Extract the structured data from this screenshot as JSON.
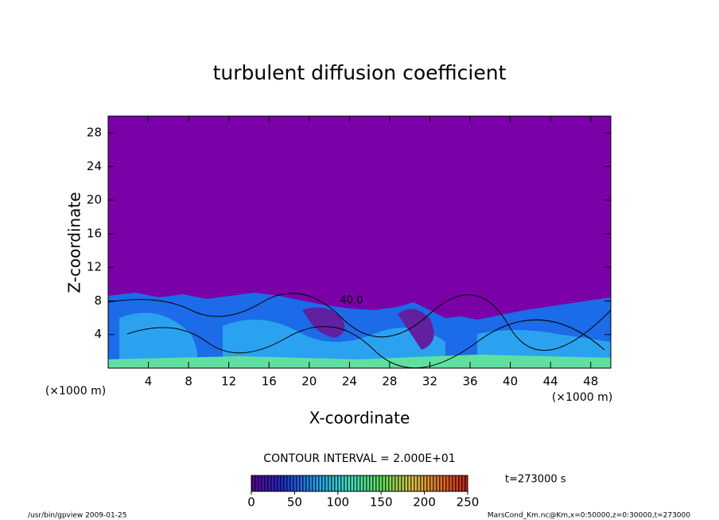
{
  "chart_data": {
    "type": "contour",
    "title": "turbulent diffusion coefficient",
    "x_label": "X-coordinate",
    "y_label": "Z-coordinate",
    "x_unit": "(×1000 m)",
    "y_unit": "(×1000 m)",
    "xlim": [
      0,
      50
    ],
    "xticks": [
      4,
      8,
      12,
      16,
      20,
      24,
      28,
      32,
      36,
      40,
      44,
      48
    ],
    "ylim": [
      0,
      30
    ],
    "yticks": [
      4,
      8,
      12,
      16,
      20,
      24,
      28
    ],
    "contour_labels": [
      "40.0"
    ],
    "contour_interval": "CONTOUR INTERVAL = 2.000E+01",
    "time_label": "t=273000 s",
    "colorbar": {
      "lim": [
        0,
        250
      ],
      "ticks": [
        0,
        50,
        100,
        150,
        200,
        250
      ]
    },
    "footer_left": "/usr/bin/gpview   2009-01-25",
    "footer_right": "MarsCond_Km.nc@Km,x=0:50000,z=0:30000,t=273000"
  }
}
